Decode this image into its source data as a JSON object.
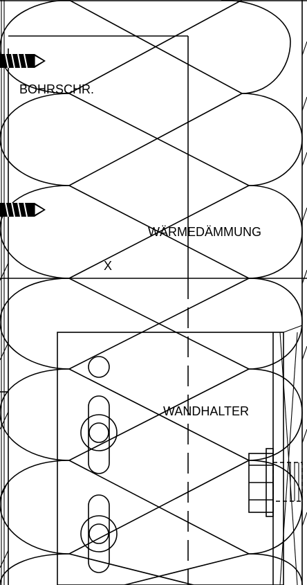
{
  "labels": {
    "screw": "BOHRSCHR.",
    "insulation": "WÄRMEDÄMMUNG",
    "marker": "X",
    "bracket": "WANDHALTER"
  }
}
